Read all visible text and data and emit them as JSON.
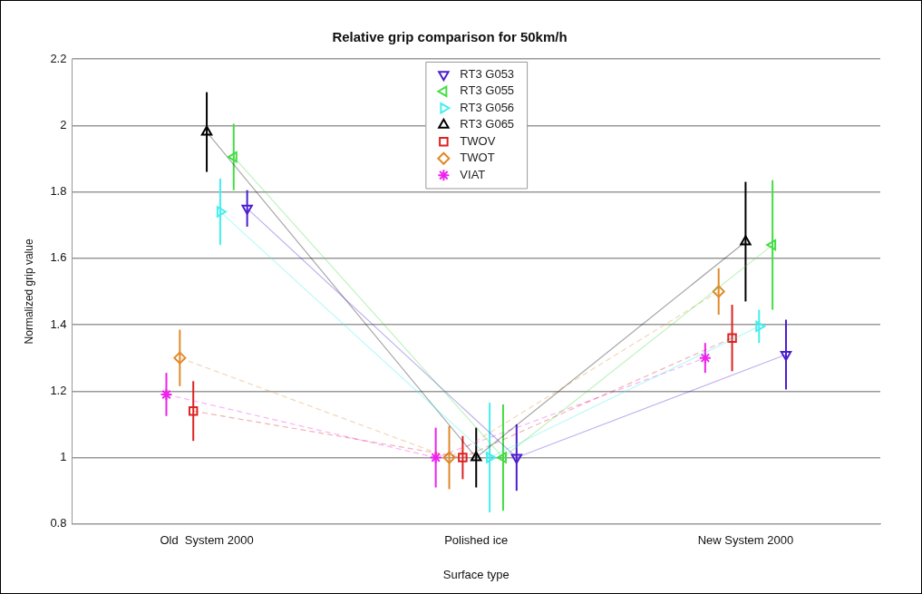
{
  "chart_data": {
    "type": "line",
    "title": "Relative grip comparison for 50km/h",
    "xlabel": "Surface type",
    "ylabel": "Normalized grip value",
    "categories": [
      "Old  System 2000",
      "Polished ice",
      "New System 2000"
    ],
    "ylim": [
      0.8,
      2.2
    ],
    "yticks": [
      0.8,
      1,
      1.2,
      1.4,
      1.6,
      1.8,
      2,
      2.2
    ],
    "grid": "y",
    "legend": "top",
    "series": [
      {
        "name": "RT3 G053",
        "color": "#4b1fd0",
        "marker": "triangle_down",
        "line_style": "solid",
        "values": [
          1.75,
          1.0,
          1.31
        ],
        "errors": [
          0.055,
          0.1,
          0.105
        ]
      },
      {
        "name": "RT3 G055",
        "color": "#44dd44",
        "marker": "triangle_left",
        "line_style": "solid",
        "values": [
          1.905,
          1.0,
          1.64
        ],
        "errors": [
          0.1,
          0.16,
          0.195
        ]
      },
      {
        "name": "RT3 G056",
        "color": "#44eeee",
        "marker": "triangle_right",
        "line_style": "solid",
        "values": [
          1.74,
          1.0,
          1.395
        ],
        "errors": [
          0.1,
          0.165,
          0.05
        ]
      },
      {
        "name": "RT3 G065",
        "color": "#000000",
        "marker": "triangle",
        "line_style": "solid",
        "values": [
          1.98,
          1.0,
          1.65
        ],
        "errors": [
          0.12,
          0.09,
          0.18
        ]
      },
      {
        "name": "TWOV",
        "color": "#dd2222",
        "marker": "square",
        "line_style": "dashed",
        "values": [
          1.14,
          1.0,
          1.36
        ],
        "errors": [
          0.09,
          0.065,
          0.1
        ]
      },
      {
        "name": "TWOT",
        "color": "#e08a2a",
        "marker": "diamond",
        "line_style": "dashed",
        "values": [
          1.3,
          1.0,
          1.5
        ],
        "errors": [
          0.085,
          0.095,
          0.07
        ]
      },
      {
        "name": "VIAT",
        "color": "#ee22ee",
        "marker": "cross",
        "line_style": "dashed",
        "values": [
          1.19,
          1.0,
          1.3
        ],
        "errors": [
          0.065,
          0.09,
          0.045
        ]
      }
    ]
  }
}
